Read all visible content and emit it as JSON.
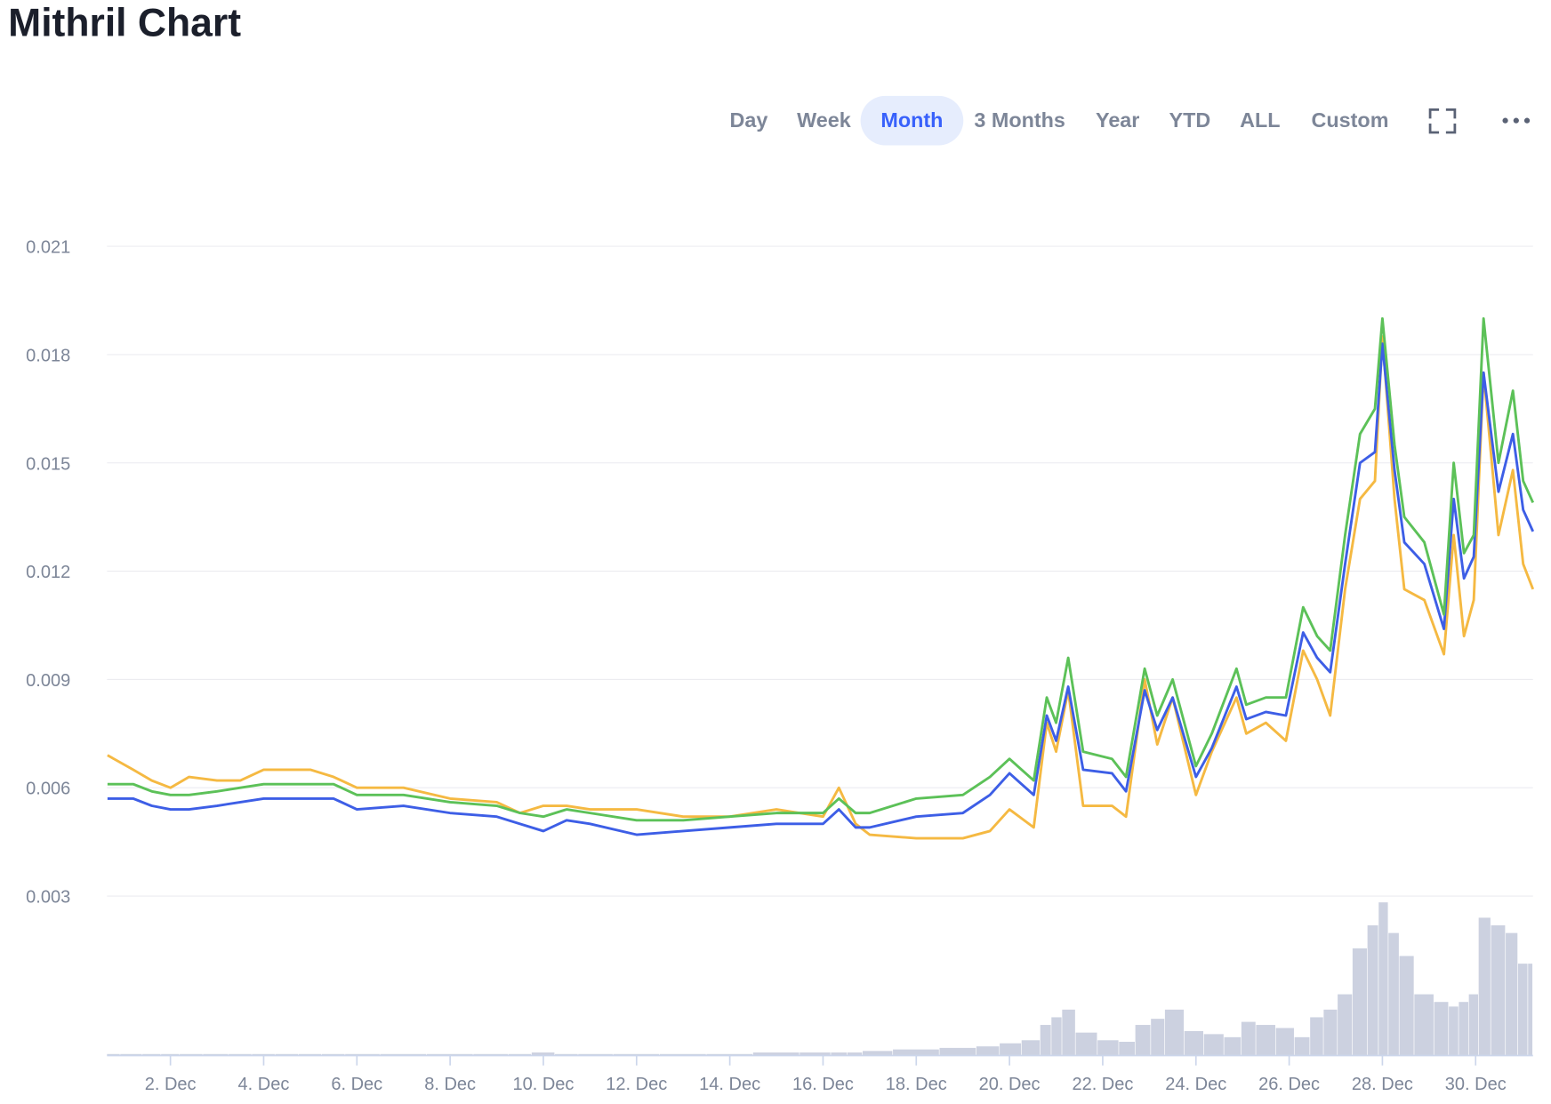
{
  "chart_data": {
    "type": "line",
    "title": "Mithril Chart",
    "range_buttons": [
      "Day",
      "Week",
      "Month",
      "3 Months",
      "Year",
      "YTD",
      "ALL",
      "Custom"
    ],
    "selected_button": 2,
    "x": [
      0.65,
      1.2,
      1.6,
      2.0,
      2.4,
      3.0,
      3.5,
      4.0,
      4.5,
      5.0,
      5.5,
      6.0,
      7.0,
      8.0,
      9.0,
      9.5,
      10.0,
      10.5,
      11.0,
      12.0,
      13.0,
      14.0,
      15.0,
      16.0,
      16.34,
      16.7,
      17.0,
      18.0,
      19.0,
      19.58,
      20.0,
      20.52,
      20.8,
      21.0,
      21.26,
      21.58,
      22.2,
      22.5,
      22.9,
      23.17,
      23.5,
      24.0,
      24.34,
      24.87,
      25.08,
      25.5,
      25.93,
      26.3,
      26.6,
      26.88,
      27.2,
      27.52,
      27.84,
      28.0,
      28.26,
      28.47,
      28.9,
      29.32,
      29.53,
      29.75,
      29.96,
      30.17,
      30.49,
      30.8,
      31.02,
      31.23
    ],
    "series": [
      {
        "color": "#5cc158",
        "values": [
          0.0061,
          0.0061,
          0.0059,
          0.0058,
          0.0058,
          0.0059,
          0.006,
          0.0061,
          0.0061,
          0.0061,
          0.0061,
          0.0058,
          0.0058,
          0.0056,
          0.0055,
          0.0053,
          0.0052,
          0.0054,
          0.0053,
          0.0051,
          0.0051,
          0.0052,
          0.0053,
          0.0053,
          0.0057,
          0.0053,
          0.0053,
          0.0057,
          0.0058,
          0.0063,
          0.0068,
          0.0062,
          0.0085,
          0.0078,
          0.0096,
          0.007,
          0.0068,
          0.0063,
          0.0093,
          0.008,
          0.009,
          0.0066,
          0.0075,
          0.0093,
          0.0083,
          0.0085,
          0.0085,
          0.011,
          0.0102,
          0.0098,
          0.013,
          0.0158,
          0.0165,
          0.019,
          0.0155,
          0.0135,
          0.0128,
          0.0108,
          0.015,
          0.0125,
          0.013,
          0.019,
          0.015,
          0.017,
          0.0145,
          0.0139
        ]
      },
      {
        "color": "#3d5ee6",
        "values": [
          0.0057,
          0.0057,
          0.0055,
          0.0054,
          0.0054,
          0.0055,
          0.0056,
          0.0057,
          0.0057,
          0.0057,
          0.0057,
          0.0054,
          0.0055,
          0.0053,
          0.0052,
          0.005,
          0.0048,
          0.0051,
          0.005,
          0.0047,
          0.0048,
          0.0049,
          0.005,
          0.005,
          0.0054,
          0.0049,
          0.0049,
          0.0052,
          0.0053,
          0.0058,
          0.0064,
          0.0058,
          0.008,
          0.0073,
          0.0088,
          0.0065,
          0.0064,
          0.0059,
          0.0087,
          0.0076,
          0.0085,
          0.0063,
          0.0071,
          0.0088,
          0.0079,
          0.0081,
          0.008,
          0.0103,
          0.0096,
          0.0092,
          0.0122,
          0.015,
          0.0153,
          0.0183,
          0.0148,
          0.0128,
          0.0122,
          0.0104,
          0.014,
          0.0118,
          0.0124,
          0.0175,
          0.0142,
          0.0158,
          0.0137,
          0.0131
        ]
      },
      {
        "color": "#f5b942",
        "values": [
          0.0069,
          0.0065,
          0.0062,
          0.006,
          0.0063,
          0.0062,
          0.0062,
          0.0065,
          0.0065,
          0.0065,
          0.0063,
          0.006,
          0.006,
          0.0057,
          0.0056,
          0.0053,
          0.0055,
          0.0055,
          0.0054,
          0.0054,
          0.0052,
          0.0052,
          0.0054,
          0.0052,
          0.006,
          0.005,
          0.0047,
          0.0046,
          0.0046,
          0.0048,
          0.0054,
          0.0049,
          0.0078,
          0.007,
          0.0087,
          0.0055,
          0.0055,
          0.0052,
          0.009,
          0.0072,
          0.0085,
          0.0058,
          0.007,
          0.0085,
          0.0075,
          0.0078,
          0.0073,
          0.0098,
          0.009,
          0.008,
          0.0115,
          0.014,
          0.0145,
          0.0185,
          0.014,
          0.0115,
          0.0112,
          0.0097,
          0.013,
          0.0102,
          0.0112,
          0.0175,
          0.013,
          0.0148,
          0.0122,
          0.0115
        ]
      }
    ],
    "volume": {
      "color": "#ccd1e0",
      "values": [
        1,
        1,
        1,
        1,
        1,
        1,
        1,
        1,
        1,
        1,
        1,
        1,
        1,
        1,
        1,
        1,
        2,
        1,
        1,
        1,
        1,
        1,
        2,
        2,
        2,
        2,
        3,
        4,
        5,
        6,
        8,
        10,
        20,
        25,
        30,
        15,
        10,
        9,
        20,
        24,
        30,
        16,
        14,
        12,
        22,
        20,
        18,
        12,
        25,
        30,
        40,
        70,
        85,
        100,
        80,
        65,
        40,
        35,
        32,
        35,
        40,
        90,
        85,
        80,
        60,
        60
      ]
    },
    "xlim": [
      0.64,
      31.23
    ],
    "xticks": [
      {
        "value": 2,
        "label": "2. Dec"
      },
      {
        "value": 4,
        "label": "4. Dec"
      },
      {
        "value": 6,
        "label": "6. Dec"
      },
      {
        "value": 8,
        "label": "8. Dec"
      },
      {
        "value": 10,
        "label": "10. Dec"
      },
      {
        "value": 12,
        "label": "12. Dec"
      },
      {
        "value": 14,
        "label": "14. Dec"
      },
      {
        "value": 16,
        "label": "16. Dec"
      },
      {
        "value": 18,
        "label": "18. Dec"
      },
      {
        "value": 20,
        "label": "20. Dec"
      },
      {
        "value": 22,
        "label": "22. Dec"
      },
      {
        "value": 24,
        "label": "24. Dec"
      },
      {
        "value": 26,
        "label": "26. Dec"
      },
      {
        "value": 28,
        "label": "28. Dec"
      },
      {
        "value": 30,
        "label": "30. Dec"
      }
    ],
    "ylim": [
      -0.00142,
      0.0218
    ],
    "yticks": [
      0.003,
      0.006,
      0.009,
      0.012,
      0.015,
      0.018,
      0.021
    ],
    "grid": true
  }
}
